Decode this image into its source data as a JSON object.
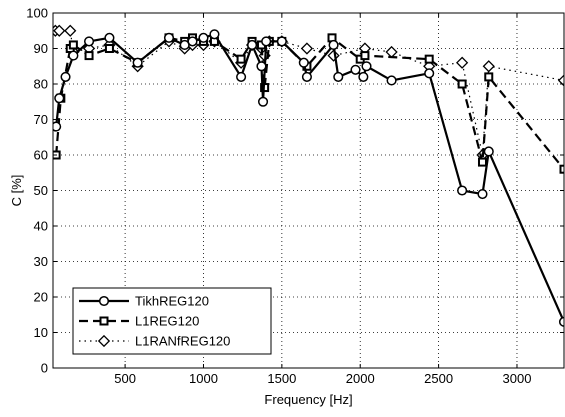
{
  "chart_data": {
    "type": "line",
    "xlabel": "Frequency [Hz]",
    "ylabel": "C [%]",
    "xlim": [
      40,
      3300
    ],
    "ylim": [
      0,
      100
    ],
    "xticks": [
      500,
      1000,
      1500,
      2000,
      2500,
      3000
    ],
    "yticks": [
      0,
      10,
      20,
      30,
      40,
      50,
      60,
      70,
      80,
      90,
      100
    ],
    "grid": true,
    "legend_position": "bottom-left",
    "series": [
      {
        "name": "TikhREG120",
        "marker": "circle",
        "line_style": "solid",
        "color": "#000000",
        "x": [
          60,
          80,
          120,
          170,
          270,
          400,
          580,
          780,
          880,
          930,
          1000,
          1070,
          1240,
          1310,
          1370,
          1380,
          1400,
          1500,
          1640,
          1660,
          1830,
          1860,
          1970,
          2020,
          2040,
          2200,
          2440,
          2650,
          2780,
          2820,
          3300
        ],
        "y": [
          68,
          76,
          82,
          88,
          92,
          93,
          86,
          93,
          91,
          92,
          93,
          94,
          82,
          91,
          85,
          75,
          92,
          92,
          86,
          82,
          91,
          82,
          84,
          82,
          85,
          81,
          83,
          50,
          49,
          61,
          13
        ]
      },
      {
        "name": "L1REG120",
        "marker": "square",
        "line_style": "dashed",
        "color": "#000000",
        "x": [
          60,
          90,
          150,
          170,
          270,
          400,
          580,
          780,
          880,
          930,
          1000,
          1070,
          1240,
          1310,
          1370,
          1390,
          1420,
          1500,
          1660,
          1820,
          2000,
          2030,
          2440,
          2650,
          2780,
          2820,
          3300
        ],
        "y": [
          60,
          76,
          90,
          91,
          88,
          90,
          86,
          93,
          92,
          93,
          92,
          92,
          87,
          92,
          91,
          79,
          92,
          92,
          85,
          93,
          87,
          88,
          87,
          80,
          58,
          82,
          56
        ]
      },
      {
        "name": "L1RANfREG120",
        "marker": "diamond",
        "line_style": "dotted",
        "color": "#000000",
        "x": [
          55,
          80,
          150,
          170,
          270,
          400,
          580,
          780,
          880,
          930,
          1000,
          1070,
          1240,
          1310,
          1370,
          1390,
          1420,
          1500,
          1660,
          1830,
          2030,
          2200,
          2440,
          2650,
          2780,
          2820,
          3300
        ],
        "y": [
          95,
          95,
          95,
          89,
          90,
          91,
          85,
          92,
          90,
          91,
          91,
          92,
          86,
          91,
          90,
          88,
          92,
          92,
          90,
          88,
          90,
          89,
          85,
          86,
          60,
          85,
          81
        ]
      }
    ]
  }
}
